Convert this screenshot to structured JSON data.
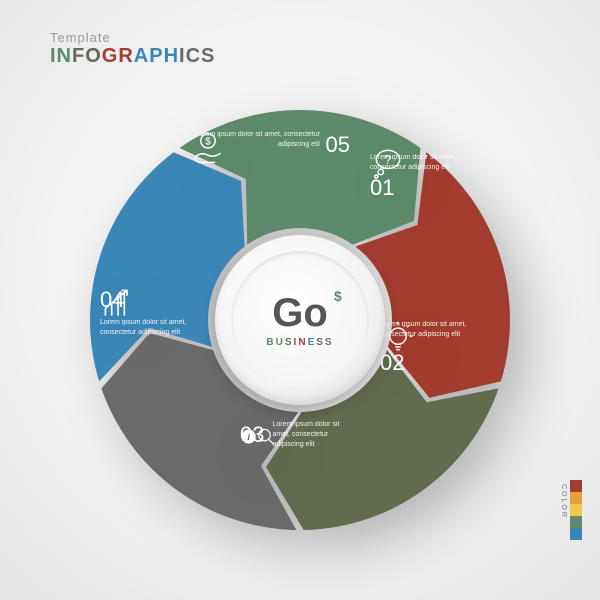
{
  "header": {
    "line1": "Template",
    "line2": "INFOGRAPHICS"
  },
  "center": {
    "main": "Go",
    "dollar": "$",
    "sub": "BUSINESS"
  },
  "lorem": "Lorem ipsum dolor sit amet, consectetur adipiscing elit",
  "segments": [
    {
      "num": "01",
      "color": "#a13c2e",
      "icon": "question"
    },
    {
      "num": "02",
      "color": "#636b4e",
      "icon": "bulb"
    },
    {
      "num": "03",
      "color": "#6a6a6a",
      "icon": "info-search"
    },
    {
      "num": "04",
      "color": "#3a87b7",
      "icon": "chart-arrow"
    },
    {
      "num": "05",
      "color": "#5c8a6a",
      "icon": "hand-coin"
    }
  ],
  "palette": [
    "#a13c2e",
    "#636b4e",
    "#6a6a6a",
    "#3a87b7",
    "#5c8a6a"
  ],
  "colorbar": [
    "#a13c2e",
    "#e89c3f",
    "#eac94e",
    "#5c8a6a",
    "#3a87b7"
  ],
  "colorbar_label": "COLOR"
}
